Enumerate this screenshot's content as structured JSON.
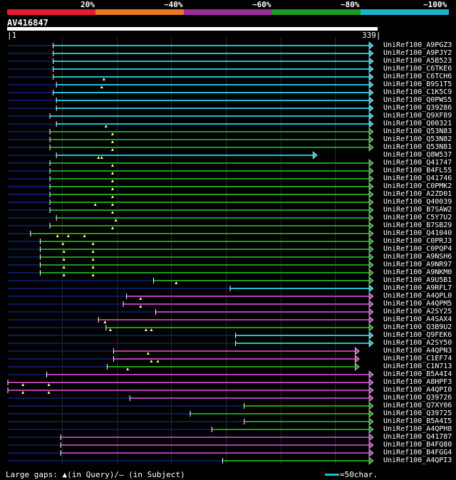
{
  "legend": {
    "labels": [
      "20%",
      "~40%",
      "~60%",
      "~80%",
      "~100%"
    ],
    "colors": [
      "#e8192c",
      "#e87722",
      "#9b2a9b",
      "#1e9b1e",
      "#19b4c8"
    ]
  },
  "query": {
    "name": "AV416847",
    "start": "1",
    "end": "339",
    "length": 339
  },
  "colors": {
    "cyan": "#19c3d2",
    "green": "#1e9b1e",
    "purple": "#b43cb4",
    "navy": "#0a1a5a",
    "marker": "#ffff99"
  },
  "hits": [
    {
      "label": "UniRef100_A9PGZ3",
      "start": 43,
      "end": 339,
      "color": "cyan"
    },
    {
      "label": "UniRef100_A9PJY2",
      "start": 43,
      "end": 339,
      "color": "cyan"
    },
    {
      "label": "UniRef100_A5B523",
      "start": 43,
      "end": 339,
      "color": "cyan"
    },
    {
      "label": "UniRef100_C6TKE6",
      "start": 43,
      "end": 339,
      "color": "cyan"
    },
    {
      "label": "UniRef100_C6TCH6",
      "start": 43,
      "end": 339,
      "color": "cyan",
      "markers": [
        90
      ]
    },
    {
      "label": "UniRef100_B9S1T5",
      "start": 46,
      "end": 339,
      "color": "cyan",
      "markers": [
        88
      ]
    },
    {
      "label": "UniRef100_C1K5C9",
      "start": 43,
      "end": 339,
      "color": "cyan"
    },
    {
      "label": "UniRef100_Q0PWS5",
      "start": 46,
      "end": 339,
      "color": "cyan"
    },
    {
      "label": "UniRef100_Q39286",
      "start": 46,
      "end": 339,
      "color": "cyan"
    },
    {
      "label": "UniRef100_Q9XF89",
      "start": 40,
      "end": 339,
      "color": "cyan"
    },
    {
      "label": "UniRef100_Q00321",
      "start": 46,
      "end": 339,
      "color": "cyan",
      "markers": [
        92
      ]
    },
    {
      "label": "UniRef100_Q53N83",
      "start": 40,
      "end": 339,
      "color": "green",
      "markers": [
        98
      ]
    },
    {
      "label": "UniRef100_Q53N82",
      "start": 40,
      "end": 339,
      "color": "green",
      "markers": [
        98
      ]
    },
    {
      "label": "UniRef100_Q53N81",
      "start": 40,
      "end": 339,
      "color": "green",
      "markers": [
        98
      ]
    },
    {
      "label": "UniRef100_Q8W537",
      "start": 46,
      "end": 287,
      "color": "cyan",
      "markers": [
        85,
        88
      ]
    },
    {
      "label": "UniRef100_Q41747",
      "start": 40,
      "end": 339,
      "color": "green",
      "markers": [
        98
      ]
    },
    {
      "label": "UniRef100_B4FL55",
      "start": 40,
      "end": 339,
      "color": "green",
      "markers": [
        98
      ]
    },
    {
      "label": "UniRef100_Q41746",
      "start": 40,
      "end": 339,
      "color": "green",
      "markers": [
        98
      ]
    },
    {
      "label": "UniRef100_C0PMK2",
      "start": 40,
      "end": 339,
      "color": "green",
      "markers": [
        98
      ]
    },
    {
      "label": "UniRef100_A2ZD01",
      "start": 40,
      "end": 339,
      "color": "green",
      "markers": [
        98
      ]
    },
    {
      "label": "UniRef100_Q40039",
      "start": 40,
      "end": 339,
      "color": "green",
      "markers": [
        82,
        98
      ]
    },
    {
      "label": "UniRef100_B7SAW2",
      "start": 40,
      "end": 339,
      "color": "green",
      "markers": [
        98
      ]
    },
    {
      "label": "UniRef100_C5Y7U2",
      "start": 46,
      "end": 339,
      "color": "green",
      "markers": [
        101
      ]
    },
    {
      "label": "UniRef100_B7SB29",
      "start": 40,
      "end": 339,
      "color": "green",
      "markers": [
        98
      ]
    },
    {
      "label": "UniRef100_Q41040",
      "start": 22,
      "end": 339,
      "color": "green",
      "markers": [
        47,
        57,
        72
      ]
    },
    {
      "label": "UniRef100_C0PRJ3",
      "start": 31,
      "end": 339,
      "color": "green",
      "markers": [
        52,
        80
      ]
    },
    {
      "label": "UniRef100_C0PQP4",
      "start": 31,
      "end": 339,
      "color": "green",
      "markers": [
        53,
        80
      ]
    },
    {
      "label": "UniRef100_A9NSH6",
      "start": 31,
      "end": 339,
      "color": "green",
      "markers": [
        53,
        80
      ]
    },
    {
      "label": "UniRef100_A9NR97",
      "start": 31,
      "end": 339,
      "color": "green",
      "markers": [
        53,
        80
      ]
    },
    {
      "label": "UniRef100_A9NKM0",
      "start": 31,
      "end": 339,
      "color": "green",
      "markers": [
        53,
        80
      ]
    },
    {
      "label": "UniRef100_A9U5B1",
      "start": 136,
      "end": 339,
      "color": "green",
      "markers": [
        157
      ]
    },
    {
      "label": "UniRef100_A9RFL7",
      "start": 207,
      "end": 339,
      "color": "cyan"
    },
    {
      "label": "UniRef100_A4QPL0",
      "start": 111,
      "end": 339,
      "color": "purple",
      "markers": [
        124
      ]
    },
    {
      "label": "UniRef100_A4QPM5",
      "start": 108,
      "end": 339,
      "color": "purple",
      "markers": [
        124
      ]
    },
    {
      "label": "UniRef100_A2SY25",
      "start": 138,
      "end": 339,
      "color": "purple"
    },
    {
      "label": "UniRef100_A4SAX4",
      "start": 85,
      "end": 339,
      "color": "purple",
      "markers": [
        91
      ]
    },
    {
      "label": "UniRef100_Q3B9U2",
      "start": 92,
      "end": 339,
      "color": "green",
      "markers": [
        96,
        129,
        134
      ]
    },
    {
      "label": "UniRef100_Q9FEK6",
      "start": 212,
      "end": 339,
      "color": "cyan"
    },
    {
      "label": "UniRef100_A2SY50",
      "start": 212,
      "end": 339,
      "color": "cyan"
    },
    {
      "label": "UniRef100_A4QPN3",
      "start": 99,
      "end": 326,
      "color": "purple",
      "markers": [
        131
      ]
    },
    {
      "label": "UniRef100_C1EF74",
      "start": 99,
      "end": 326,
      "color": "purple",
      "markers": [
        134,
        140
      ]
    },
    {
      "label": "UniRef100_C1N713",
      "start": 93,
      "end": 326,
      "color": "green",
      "markers": [
        112
      ]
    },
    {
      "label": "UniRef100_B5A4I4",
      "start": 37,
      "end": 339,
      "color": "purple"
    },
    {
      "label": "UniRef100_A8HPF3",
      "start": 1,
      "end": 339,
      "color": "purple",
      "markers": [
        15,
        39
      ]
    },
    {
      "label": "UniRef100_A4QPI0",
      "start": 1,
      "end": 339,
      "color": "purple",
      "markers": [
        15,
        39
      ]
    },
    {
      "label": "UniRef100_Q39726",
      "start": 114,
      "end": 339,
      "color": "purple"
    },
    {
      "label": "UniRef100_Q7XY06",
      "start": 220,
      "end": 339,
      "color": "green"
    },
    {
      "label": "UniRef100_Q39725",
      "start": 170,
      "end": 339,
      "color": "green"
    },
    {
      "label": "UniRef100_B5A4I5",
      "start": 220,
      "end": 339,
      "color": "green"
    },
    {
      "label": "UniRef100_A4QPH8",
      "start": 190,
      "end": 339,
      "color": "green"
    },
    {
      "label": "UniRef100_Q41787",
      "start": 50,
      "end": 339,
      "color": "purple"
    },
    {
      "label": "UniRef100_B4FQ80",
      "start": 50,
      "end": 339,
      "color": "purple"
    },
    {
      "label": "UniRef100_B4FGG4",
      "start": 50,
      "end": 339,
      "color": "purple"
    },
    {
      "label": "UniRef100_A4QPI3",
      "start": 200,
      "end": 339,
      "color": "green"
    }
  ],
  "footer": {
    "text": "Large gaps: ▲(in Query)/– (in Subject)",
    "scale": "=50char."
  }
}
